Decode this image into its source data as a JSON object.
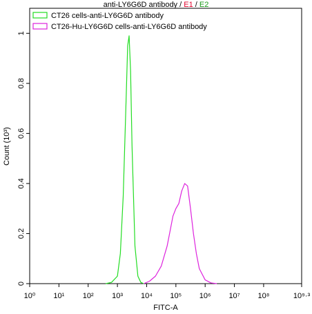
{
  "chart_data": {
    "type": "line",
    "title_parts": [
      {
        "text": "anti-LY6G6D antibody / ",
        "color": "#000000"
      },
      {
        "text": "E1",
        "color": "#e0002a"
      },
      {
        "text": " / ",
        "color": "#000000"
      },
      {
        "text": "E2",
        "color": "#1a9a1a"
      }
    ],
    "x_label": "FITC-A",
    "y_label": "Count (10³)",
    "xscale": "log",
    "xlim": [
      1,
      1995262315
    ],
    "xticks": [
      {
        "value": 1,
        "label": "10⁰"
      },
      {
        "value": 10,
        "label": "10¹"
      },
      {
        "value": 100,
        "label": "10²"
      },
      {
        "value": 1000,
        "label": "10³"
      },
      {
        "value": 10000,
        "label": "10⁴"
      },
      {
        "value": 100000,
        "label": "10⁵"
      },
      {
        "value": 1000000,
        "label": "10⁶"
      },
      {
        "value": 10000000,
        "label": "10⁷"
      },
      {
        "value": 100000000,
        "label": "10⁸"
      },
      {
        "value": 1995262315,
        "label": "10⁹·³"
      }
    ],
    "ylim": [
      0,
      1.1
    ],
    "yticks": [
      0,
      0.2,
      0.4,
      0.6,
      0.8,
      1
    ],
    "legend": "upper left",
    "series": [
      {
        "name": "CT26 cells-anti-LY6G6D antibody",
        "color": "#22dd22",
        "x": [
          400,
          630,
          1000,
          1260,
          1580,
          2000,
          2240,
          2510,
          2820,
          3160,
          3980,
          5010,
          6310,
          7940
        ],
        "values": [
          0,
          0.005,
          0.03,
          0.12,
          0.35,
          0.75,
          0.95,
          0.99,
          0.85,
          0.55,
          0.15,
          0.03,
          0.005,
          0
        ]
      },
      {
        "name": "CT26-Hu-LY6G6D cells-anti-LY6G6D antibody",
        "color": "#dd22dd",
        "x": [
          7940,
          12600,
          20000,
          31600,
          50100,
          63100,
          79400,
          100000,
          126000,
          158000,
          200000,
          251000,
          316000,
          398000,
          501000,
          631000,
          1000000,
          1580000,
          2510000
        ],
        "values": [
          0,
          0.01,
          0.03,
          0.07,
          0.15,
          0.21,
          0.27,
          0.3,
          0.32,
          0.37,
          0.4,
          0.39,
          0.3,
          0.2,
          0.12,
          0.06,
          0.015,
          0.003,
          0
        ]
      }
    ]
  }
}
